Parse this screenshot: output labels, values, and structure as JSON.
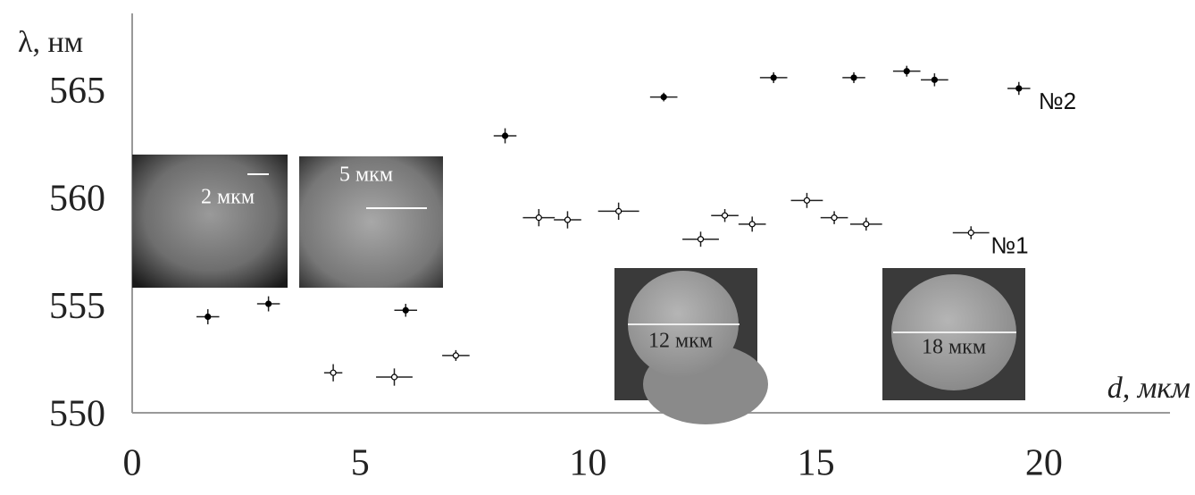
{
  "chart_data": {
    "type": "scatter",
    "ylabel": "λ, нм",
    "xlabel": "d, мкм",
    "xlim": [
      0,
      23
    ],
    "ylim": [
      550,
      568.5
    ],
    "xticks": [
      0,
      5,
      10,
      15,
      20
    ],
    "yticks": [
      550,
      555,
      560,
      565
    ],
    "series": [
      {
        "name": "№2",
        "color": "#000000",
        "x": [
          1.66,
          2.99,
          6.0,
          8.18,
          11.66,
          14.07,
          15.83,
          16.99,
          17.6,
          19.45
        ],
        "values": [
          554.5,
          555.1,
          554.8,
          562.9,
          564.7,
          565.6,
          565.6,
          565.9,
          565.5,
          565.1
        ],
        "xerr": [
          0.25,
          0.25,
          0.25,
          0.25,
          0.3,
          0.3,
          0.25,
          0.3,
          0.3,
          0.25
        ],
        "yerr": [
          0.35,
          0.35,
          0.3,
          0.35,
          0.2,
          0.25,
          0.25,
          0.25,
          0.3,
          0.3
        ]
      },
      {
        "name": "№1",
        "color": "#ffffff",
        "x": [
          4.41,
          5.75,
          7.1,
          8.92,
          9.55,
          10.67,
          12.47,
          13.0,
          13.6,
          14.8,
          15.4,
          16.1,
          18.4
        ],
        "values": [
          551.9,
          551.7,
          552.7,
          559.1,
          559.0,
          559.4,
          558.1,
          559.2,
          558.8,
          559.9,
          559.1,
          558.8,
          558.4
        ],
        "xerr": [
          0.2,
          0.4,
          0.3,
          0.35,
          0.3,
          0.45,
          0.4,
          0.3,
          0.3,
          0.35,
          0.3,
          0.35,
          0.4
        ],
        "yerr": [
          0.4,
          0.4,
          0.25,
          0.4,
          0.4,
          0.4,
          0.35,
          0.3,
          0.35,
          0.35,
          0.3,
          0.3,
          0.3
        ]
      }
    ],
    "insets": [
      "2 мкм",
      "5 мкм",
      "12 мкм",
      "18 мкм"
    ]
  }
}
